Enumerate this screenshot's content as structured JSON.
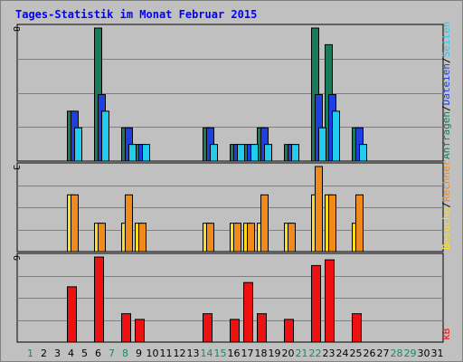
{
  "chart_data": {
    "type": "bar",
    "title": "Tages-Statistik im Monat Februar 2015",
    "days": [
      "1",
      "2",
      "3",
      "4",
      "5",
      "6",
      "7",
      "8",
      "9",
      "10",
      "11",
      "12",
      "13",
      "14",
      "15",
      "16",
      "17",
      "18",
      "19",
      "20",
      "21",
      "22",
      "23",
      "24",
      "25",
      "26",
      "27",
      "28",
      "29",
      "30",
      "31"
    ],
    "weekend_days": [
      "1",
      "7",
      "8",
      "14",
      "15",
      "21",
      "22",
      "28",
      "29"
    ],
    "panels": [
      {
        "name": "top",
        "ymax": "8",
        "ylim": [
          0,
          8
        ],
        "series": [
          {
            "name": "Anfragen",
            "color": "#1a7a5c",
            "values": [
              0,
              0,
              0,
              3,
              0,
              8,
              0,
              2,
              1,
              0,
              0,
              0,
              0,
              2,
              0,
              1,
              1,
              2,
              0,
              1,
              0,
              8,
              7,
              0,
              2,
              0,
              0,
              0,
              0,
              0,
              0
            ]
          },
          {
            "name": "Dateien",
            "color": "#1e40e0",
            "values": [
              0,
              0,
              0,
              3,
              0,
              4,
              0,
              2,
              1,
              0,
              0,
              0,
              0,
              2,
              0,
              1,
              1,
              2,
              0,
              1,
              0,
              4,
              4,
              0,
              2,
              0,
              0,
              0,
              0,
              0,
              0
            ]
          },
          {
            "name": "Seiten",
            "color": "#22ccee",
            "values": [
              0,
              0,
              0,
              2,
              0,
              3,
              0,
              1,
              1,
              0,
              0,
              0,
              0,
              1,
              0,
              1,
              1,
              1,
              0,
              1,
              0,
              2,
              3,
              0,
              1,
              0,
              0,
              0,
              0,
              0,
              0
            ]
          }
        ]
      },
      {
        "name": "middle",
        "ymax": "3",
        "ylim": [
          0,
          3
        ],
        "series": [
          {
            "name": "Besuche",
            "color": "#ffdd22",
            "values": [
              0,
              0,
              0,
              2,
              0,
              1,
              0,
              1,
              1,
              0,
              0,
              0,
              0,
              1,
              0,
              1,
              1,
              1,
              0,
              1,
              0,
              2,
              2,
              0,
              1,
              0,
              0,
              0,
              0,
              0,
              0
            ]
          },
          {
            "name": "Rechner",
            "color": "#f08a1a",
            "values": [
              0,
              0,
              0,
              2,
              0,
              1,
              0,
              2,
              1,
              0,
              0,
              0,
              0,
              1,
              0,
              1,
              1,
              2,
              0,
              1,
              0,
              3,
              2,
              0,
              2,
              0,
              0,
              0,
              0,
              0,
              0
            ]
          }
        ]
      },
      {
        "name": "bottom",
        "ymax": "6",
        "ylim": [
          0,
          6
        ],
        "series": [
          {
            "name": "kB",
            "color": "#ee1111",
            "values": [
              0,
              0,
              0,
              3.9,
              0,
              6,
              0,
              2,
              1.6,
              0,
              0,
              0,
              0,
              2,
              0,
              1.6,
              4.2,
              2,
              0,
              1.6,
              0,
              5.4,
              5.8,
              0,
              2,
              0,
              0,
              0,
              0,
              0,
              0
            ]
          }
        ]
      }
    ],
    "side_labels": {
      "top": [
        {
          "text": "Anfragen",
          "color": "#1a7a5c"
        },
        {
          "text": "/",
          "color": "#000000"
        },
        {
          "text": "Dateien",
          "color": "#1e40e0"
        },
        {
          "text": "/",
          "color": "#000000"
        },
        {
          "text": "Seiten",
          "color": "#22ccee"
        }
      ],
      "middle": [
        {
          "text": "Besuche",
          "color": "#ffdd22"
        },
        {
          "text": "/",
          "color": "#000000"
        },
        {
          "text": "Rechner",
          "color": "#f08a1a"
        }
      ],
      "bottom": [
        {
          "text": "kB",
          "color": "#ee1111"
        }
      ]
    },
    "grid": true
  }
}
